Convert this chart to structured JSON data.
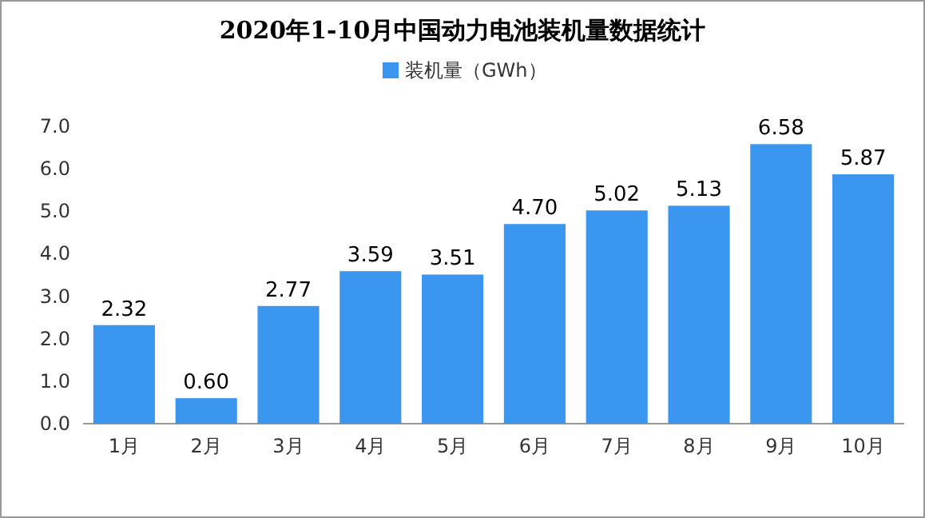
{
  "chart_data": {
    "type": "bar",
    "title": "2020年1-10月中国动力电池装机量数据统计",
    "categories": [
      "1月",
      "2月",
      "3月",
      "4月",
      "5月",
      "6月",
      "7月",
      "8月",
      "9月",
      "10月"
    ],
    "series": [
      {
        "name": "装机量（GWh）",
        "color": "#3b96f0",
        "values": [
          2.32,
          0.6,
          2.77,
          3.59,
          3.51,
          4.7,
          5.02,
          5.13,
          6.58,
          5.87
        ],
        "value_labels": [
          "2.32",
          "0.60",
          "2.77",
          "3.59",
          "3.51",
          "4.70",
          "5.02",
          "5.13",
          "6.58",
          "5.87"
        ]
      }
    ],
    "ylim": [
      0,
      7
    ],
    "yticks": [
      {
        "value": 0,
        "label": "0.0"
      },
      {
        "value": 1,
        "label": "1.0"
      },
      {
        "value": 2,
        "label": "2.0"
      },
      {
        "value": 3,
        "label": "3.0"
      },
      {
        "value": 4,
        "label": "4.0"
      },
      {
        "value": 5,
        "label": "5.0"
      },
      {
        "value": 6,
        "label": "6.0"
      },
      {
        "value": 7,
        "label": "7.0"
      }
    ],
    "grid": false,
    "legend": "top"
  }
}
